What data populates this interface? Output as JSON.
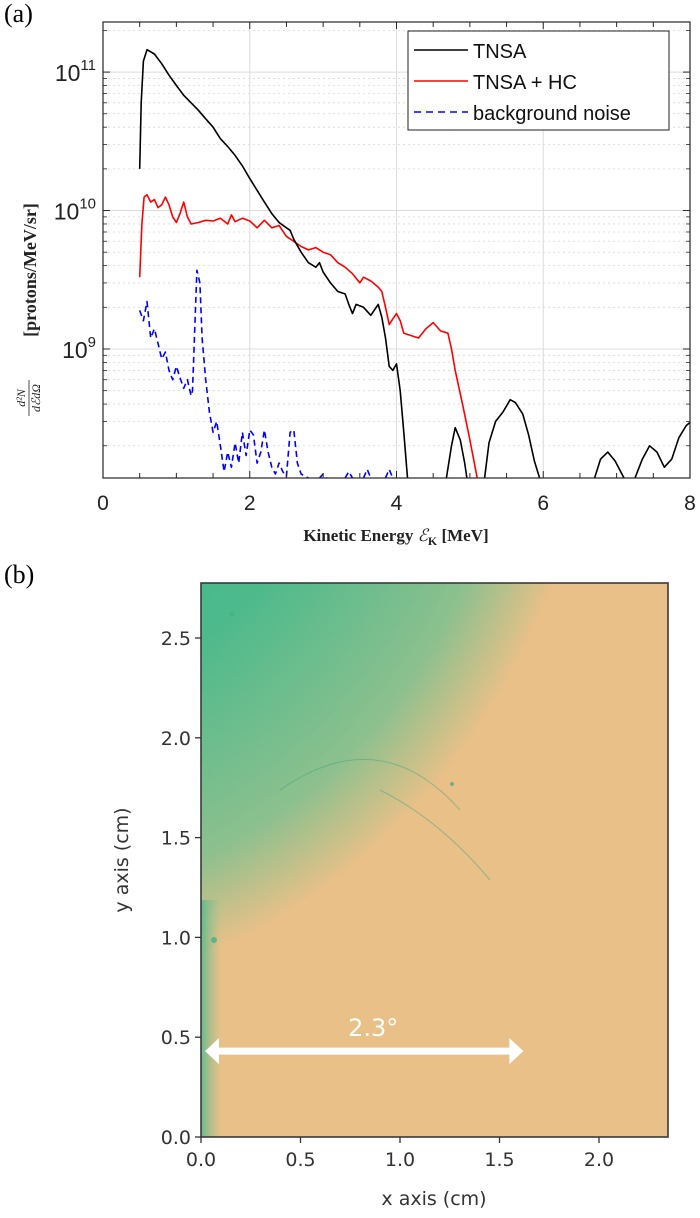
{
  "chart_data": [
    {
      "panel_label": "(a)",
      "type": "line",
      "title": "",
      "xlabel": "Kinetic Energy ℰK [MeV]",
      "xlabel_parts": {
        "main": "Kinetic Energy ",
        "symbol": "ℰ",
        "subscript": "K",
        "unit": " [MeV]"
      },
      "ylabel": "d²N/dℰdΩ [protons/MeV/sr]",
      "ylabel_parts": {
        "num": "d²N",
        "den": "dℰdΩ",
        "unit": "[protons/MeV/sr]"
      },
      "xlim": [
        0,
        8
      ],
      "ylim": [
        117000000.0,
        230000000000.0
      ],
      "yscale": "log",
      "grid": true,
      "legend_position": "top-right",
      "x_ticks": [
        0,
        2,
        4,
        6,
        8
      ],
      "x_tick_labels": [
        "0",
        "2",
        "4",
        "6",
        "8"
      ],
      "y_ticks": [
        1000000000.0,
        10000000000.0,
        100000000000.0
      ],
      "y_tick_labels": [
        {
          "base": "10",
          "exp": "9"
        },
        {
          "base": "10",
          "exp": "10"
        },
        {
          "base": "10",
          "exp": "11"
        }
      ],
      "series": [
        {
          "name": "TNSA",
          "color": "#000000",
          "style": "solid",
          "segments": [
            [
              [
                0.5,
                20000000000.0
              ],
              [
                0.52,
                60000000000.0
              ],
              [
                0.55,
                120000000000.0
              ],
              [
                0.6,
                145000000000.0
              ],
              [
                0.7,
                135000000000.0
              ],
              [
                0.8,
                115000000000.0
              ],
              [
                0.9,
                95000000000.0
              ],
              [
                1.0,
                80000000000.0
              ],
              [
                1.1,
                68000000000.0
              ],
              [
                1.2,
                60000000000.0
              ],
              [
                1.3,
                53000000000.0
              ],
              [
                1.4,
                46000000000.0
              ],
              [
                1.5,
                40000000000.0
              ],
              [
                1.6,
                33000000000.0
              ],
              [
                1.7,
                29000000000.0
              ],
              [
                1.8,
                25000000000.0
              ],
              [
                1.9,
                21000000000.0
              ],
              [
                2.0,
                17000000000.0
              ],
              [
                2.1,
                14000000000.0
              ],
              [
                2.2,
                11500000000.0
              ],
              [
                2.3,
                9500000000.0
              ],
              [
                2.4,
                8200000000.0
              ],
              [
                2.5,
                7500000000.0
              ],
              [
                2.55,
                7200000000.0
              ],
              [
                2.6,
                6200000000.0
              ],
              [
                2.7,
                5000000000.0
              ],
              [
                2.8,
                4200000000.0
              ],
              [
                2.9,
                3900000000.0
              ],
              [
                2.95,
                4200000000.0
              ],
              [
                3.0,
                3600000000.0
              ],
              [
                3.1,
                3000000000.0
              ],
              [
                3.2,
                2600000000.0
              ],
              [
                3.3,
                2500000000.0
              ],
              [
                3.35,
                2100000000.0
              ],
              [
                3.4,
                1800000000.0
              ],
              [
                3.45,
                2100000000.0
              ],
              [
                3.55,
                2000000000.0
              ],
              [
                3.65,
                1750000000.0
              ],
              [
                3.75,
                2100000000.0
              ],
              [
                3.8,
                1700000000.0
              ],
              [
                3.85,
                1200000000.0
              ],
              [
                3.9,
                750000000.0
              ],
              [
                3.95,
                700000000.0
              ],
              [
                4.0,
                780000000.0
              ],
              [
                4.05,
                500000000.0
              ],
              [
                4.1,
                250000000.0
              ],
              [
                4.15,
                117000000.0
              ]
            ],
            [
              [
                4.68,
                117000000.0
              ],
              [
                4.75,
                200000000.0
              ],
              [
                4.8,
                270000000.0
              ],
              [
                4.87,
                220000000.0
              ],
              [
                4.93,
                150000000.0
              ],
              [
                4.96,
                117000000.0
              ]
            ],
            [
              [
                5.2,
                117000000.0
              ],
              [
                5.26,
                210000000.0
              ],
              [
                5.35,
                300000000.0
              ],
              [
                5.45,
                350000000.0
              ],
              [
                5.55,
                430000000.0
              ],
              [
                5.62,
                410000000.0
              ],
              [
                5.72,
                340000000.0
              ],
              [
                5.8,
                240000000.0
              ],
              [
                5.88,
                155000000.0
              ],
              [
                5.95,
                117000000.0
              ]
            ],
            [
              [
                6.7,
                117000000.0
              ],
              [
                6.78,
                160000000.0
              ],
              [
                6.88,
                180000000.0
              ],
              [
                6.98,
                155000000.0
              ],
              [
                7.1,
                117000000.0
              ]
            ],
            [
              [
                7.25,
                117000000.0
              ],
              [
                7.35,
                160000000.0
              ],
              [
                7.45,
                200000000.0
              ],
              [
                7.55,
                180000000.0
              ],
              [
                7.65,
                140000000.0
              ],
              [
                7.75,
                160000000.0
              ],
              [
                7.85,
                230000000.0
              ],
              [
                7.95,
                280000000.0
              ],
              [
                8.0,
                295000000.0
              ]
            ]
          ]
        },
        {
          "name": "TNSA + HC",
          "color": "#ff0000",
          "style": "solid",
          "segments": [
            [
              [
                0.5,
                3300000000.0
              ],
              [
                0.53,
                8000000000.0
              ],
              [
                0.56,
                12500000000.0
              ],
              [
                0.6,
                13000000000.0
              ],
              [
                0.65,
                11500000000.0
              ],
              [
                0.7,
                12000000000.0
              ],
              [
                0.75,
                10500000000.0
              ],
              [
                0.8,
                11000000000.0
              ],
              [
                0.85,
                12500000000.0
              ],
              [
                0.9,
                11000000000.0
              ],
              [
                0.95,
                9000000000.0
              ],
              [
                1.0,
                8200000000.0
              ],
              [
                1.05,
                9500000000.0
              ],
              [
                1.1,
                11500000000.0
              ],
              [
                1.15,
                9000000000.0
              ],
              [
                1.2,
                8000000000.0
              ],
              [
                1.3,
                8200000000.0
              ],
              [
                1.4,
                8500000000.0
              ],
              [
                1.5,
                8400000000.0
              ],
              [
                1.6,
                8800000000.0
              ],
              [
                1.7,
                8000000000.0
              ],
              [
                1.75,
                9300000000.0
              ],
              [
                1.8,
                8300000000.0
              ],
              [
                1.9,
                8800000000.0
              ],
              [
                2.0,
                8400000000.0
              ],
              [
                2.1,
                7500000000.0
              ],
              [
                2.2,
                8500000000.0
              ],
              [
                2.3,
                7500000000.0
              ],
              [
                2.4,
                7800000000.0
              ],
              [
                2.5,
                6500000000.0
              ],
              [
                2.6,
                6000000000.0
              ],
              [
                2.7,
                5500000000.0
              ],
              [
                2.8,
                5200000000.0
              ],
              [
                2.9,
                5400000000.0
              ],
              [
                3.0,
                5000000000.0
              ],
              [
                3.1,
                4800000000.0
              ],
              [
                3.2,
                4200000000.0
              ],
              [
                3.3,
                3900000000.0
              ],
              [
                3.4,
                3500000000.0
              ],
              [
                3.5,
                3000000000.0
              ],
              [
                3.55,
                3300000000.0
              ],
              [
                3.65,
                3100000000.0
              ],
              [
                3.75,
                2800000000.0
              ],
              [
                3.8,
                2600000000.0
              ],
              [
                3.85,
                2000000000.0
              ],
              [
                3.9,
                1500000000.0
              ],
              [
                3.95,
                1650000000.0
              ],
              [
                4.0,
                1800000000.0
              ],
              [
                4.05,
                1600000000.0
              ],
              [
                4.1,
                1300000000.0
              ],
              [
                4.2,
                1250000000.0
              ],
              [
                4.3,
                1200000000.0
              ],
              [
                4.4,
                1400000000.0
              ],
              [
                4.5,
                1550000000.0
              ],
              [
                4.6,
                1350000000.0
              ],
              [
                4.7,
                1300000000.0
              ],
              [
                4.75,
                1000000000.0
              ],
              [
                4.8,
                700000000.0
              ],
              [
                4.9,
                400000000.0
              ],
              [
                5.0,
                220000000.0
              ],
              [
                5.1,
                117000000.0
              ]
            ]
          ]
        },
        {
          "name": "background noise",
          "color": "#0000ff",
          "style": "dashed",
          "segments": [
            [
              [
                0.5,
                1900000000.0
              ],
              [
                0.55,
                1600000000.0
              ],
              [
                0.6,
                2200000000.0
              ],
              [
                0.65,
                1200000000.0
              ],
              [
                0.7,
                1400000000.0
              ],
              [
                0.75,
                1100000000.0
              ],
              [
                0.8,
                850000000.0
              ],
              [
                0.85,
                950000000.0
              ],
              [
                0.9,
                700000000.0
              ],
              [
                0.95,
                600000000.0
              ],
              [
                1.0,
                750000000.0
              ],
              [
                1.05,
                620000000.0
              ],
              [
                1.1,
                520000000.0
              ],
              [
                1.15,
                600000000.0
              ],
              [
                1.2,
                460000000.0
              ],
              [
                1.22,
                500000000.0
              ],
              [
                1.28,
                3700000000.0
              ],
              [
                1.32,
                3000000000.0
              ],
              [
                1.35,
                1200000000.0
              ],
              [
                1.4,
                600000000.0
              ],
              [
                1.45,
                350000000.0
              ],
              [
                1.5,
                250000000.0
              ],
              [
                1.55,
                300000000.0
              ],
              [
                1.6,
                200000000.0
              ],
              [
                1.65,
                130000000.0
              ],
              [
                1.7,
                180000000.0
              ],
              [
                1.75,
                140000000.0
              ],
              [
                1.8,
                210000000.0
              ],
              [
                1.85,
                150000000.0
              ],
              [
                1.9,
                250000000.0
              ],
              [
                1.95,
                170000000.0
              ],
              [
                2.0,
                260000000.0
              ],
              [
                2.05,
                240000000.0
              ],
              [
                2.1,
                150000000.0
              ],
              [
                2.15,
                180000000.0
              ],
              [
                2.2,
                260000000.0
              ],
              [
                2.25,
                180000000.0
              ],
              [
                2.3,
                140000000.0
              ],
              [
                2.35,
                125000000.0
              ],
              [
                2.4,
                150000000.0
              ],
              [
                2.45,
                130000000.0
              ],
              [
                2.5,
                120000000.0
              ],
              [
                2.55,
                250000000.0
              ],
              [
                2.6,
                260000000.0
              ],
              [
                2.65,
                150000000.0
              ],
              [
                2.7,
                125000000.0
              ],
              [
                2.8,
                117000000.0
              ]
            ],
            [
              [
                2.95,
                117000000.0
              ],
              [
                3.0,
                125000000.0
              ],
              [
                3.05,
                117000000.0
              ]
            ],
            [
              [
                3.3,
                117000000.0
              ],
              [
                3.35,
                130000000.0
              ],
              [
                3.4,
                117000000.0
              ]
            ],
            [
              [
                3.55,
                117000000.0
              ],
              [
                3.6,
                135000000.0
              ],
              [
                3.65,
                117000000.0
              ]
            ],
            [
              [
                3.85,
                117000000.0
              ],
              [
                3.9,
                135000000.0
              ],
              [
                3.95,
                117000000.0
              ]
            ]
          ]
        }
      ]
    },
    {
      "panel_label": "(b)",
      "type": "heatmap",
      "title": "",
      "xlabel": "x axis (cm)",
      "ylabel": "y axis (cm)",
      "xlim": [
        0,
        2.35
      ],
      "ylim": [
        0,
        2.78
      ],
      "x_ticks": [
        0.0,
        0.5,
        1.0,
        1.5,
        2.0
      ],
      "x_tick_labels": [
        "0.0",
        "0.5",
        "1.0",
        "1.5",
        "2.0"
      ],
      "y_ticks": [
        0.0,
        0.5,
        1.0,
        1.5,
        2.0,
        2.5
      ],
      "y_tick_labels": [
        "0.0",
        "0.5",
        "1.0",
        "1.5",
        "2.0",
        "2.5"
      ],
      "colors": {
        "high": "#22b58a",
        "mid": "#8cc08e",
        "low": "#e8c088"
      },
      "annotation": {
        "text": "2.3°",
        "arrow_from_x": 0.0,
        "arrow_to_x": 1.62,
        "arrow_y": 0.43,
        "color": "#ffffff"
      }
    }
  ]
}
